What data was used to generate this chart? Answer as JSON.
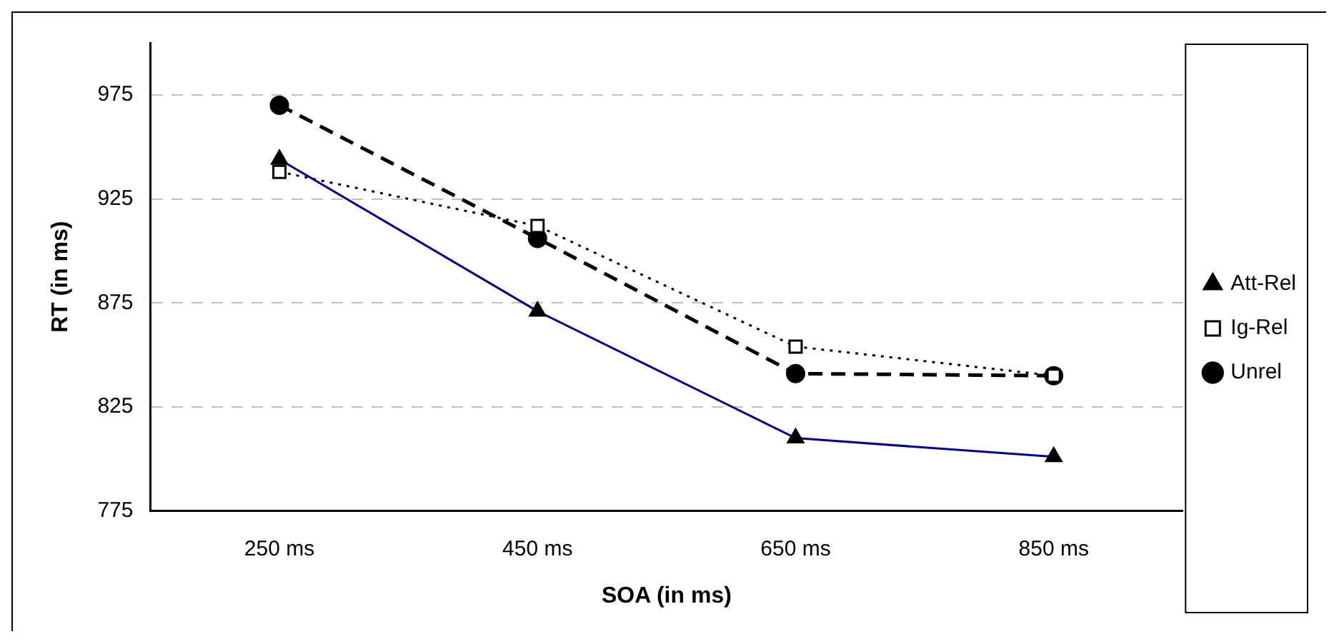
{
  "chart_data": {
    "type": "line",
    "xlabel": "SOA (in ms)",
    "ylabel": "RT (in ms)",
    "categories": [
      "250 ms",
      "450 ms",
      "650 ms",
      "850 ms"
    ],
    "ylim": [
      775,
      1000
    ],
    "yticks": [
      775,
      825,
      875,
      925,
      975
    ],
    "grid": "y",
    "legend": "right",
    "series": [
      {
        "name": "Att-Rel",
        "color": "#000080",
        "values": [
          944,
          871,
          810,
          801
        ],
        "marker": "triangle",
        "line_style": "solid"
      },
      {
        "name": "Ig-Rel",
        "color": "#000000",
        "values": [
          938,
          912,
          854,
          840
        ],
        "marker": "square",
        "line_style": "dotted"
      },
      {
        "name": "Unrel",
        "color": "#000000",
        "values": [
          970,
          906,
          841,
          840
        ],
        "marker": "circle",
        "line_style": "dashed"
      }
    ]
  }
}
